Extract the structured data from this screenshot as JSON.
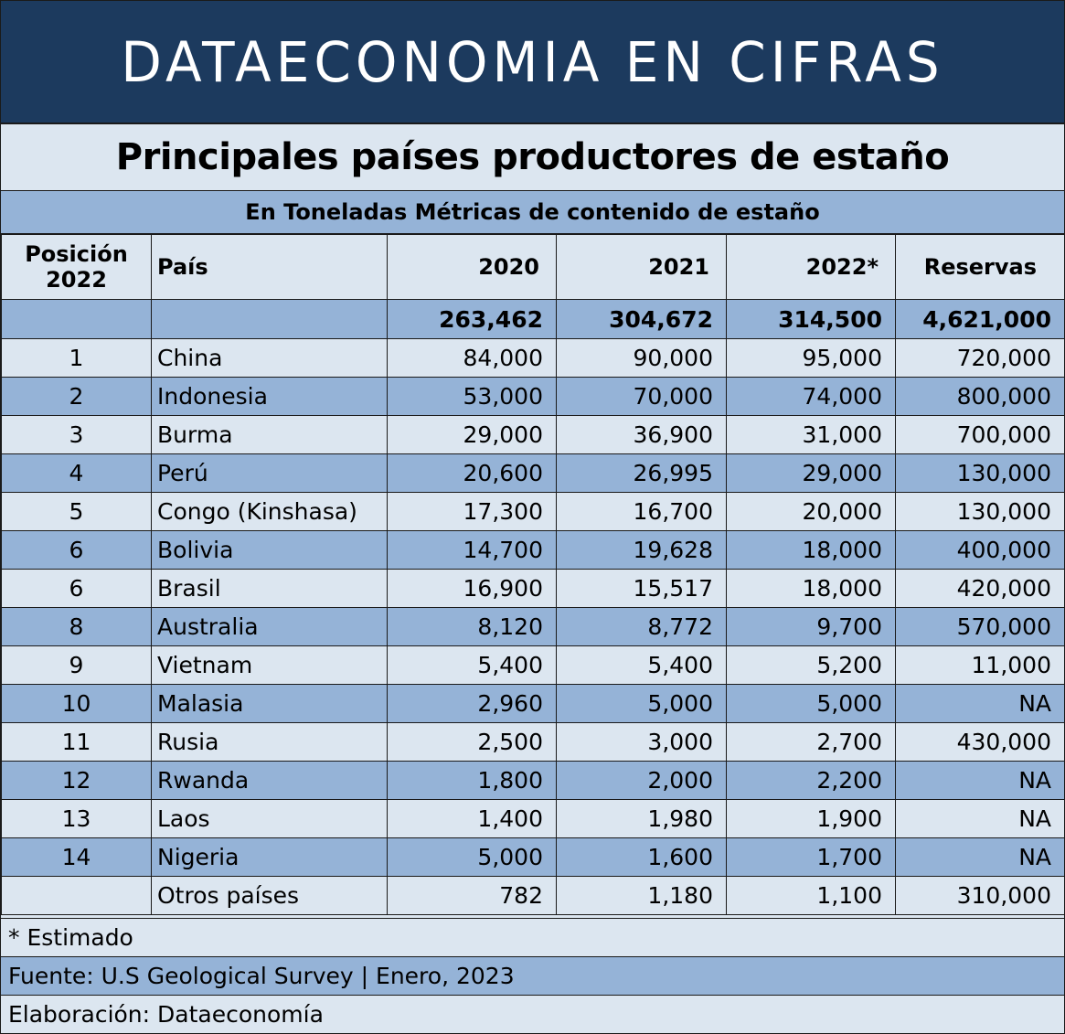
{
  "banner": "DATAECONOMIA EN CIFRAS",
  "title": "Principales países productores de estaño",
  "subtitle": "En Toneladas Métricas de contenido de estaño",
  "colors": {
    "banner": "#1c3a5e",
    "light": "#dce6f0",
    "dark": "#95b3d7"
  },
  "headers": {
    "position_line1": "Posición",
    "position_line2": "2022",
    "country": "País",
    "y2020": "2020",
    "y2021": "2021",
    "y2022": "2022*",
    "reserves": "Reservas"
  },
  "totals": {
    "y2020": "263,462",
    "y2021": "304,672",
    "y2022": "314,500",
    "reserves": "4,621,000"
  },
  "chart_data": {
    "type": "table",
    "columns": [
      "Posición 2022",
      "País",
      "2020",
      "2021",
      "2022*",
      "Reservas"
    ],
    "rows": [
      [
        "1",
        "China",
        "84,000",
        "90,000",
        "95,000",
        "720,000"
      ],
      [
        "2",
        "Indonesia",
        "53,000",
        "70,000",
        "74,000",
        "800,000"
      ],
      [
        "3",
        "Burma",
        "29,000",
        "36,900",
        "31,000",
        "700,000"
      ],
      [
        "4",
        "Perú",
        "20,600",
        "26,995",
        "29,000",
        "130,000"
      ],
      [
        "5",
        "Congo (Kinshasa)",
        "17,300",
        "16,700",
        "20,000",
        "130,000"
      ],
      [
        "6",
        "Bolivia",
        "14,700",
        "19,628",
        "18,000",
        "400,000"
      ],
      [
        "6",
        "Brasil",
        "16,900",
        "15,517",
        "18,000",
        "420,000"
      ],
      [
        "8",
        "Australia",
        "8,120",
        "8,772",
        "9,700",
        "570,000"
      ],
      [
        "9",
        "Vietnam",
        "5,400",
        "5,400",
        "5,200",
        "11,000"
      ],
      [
        "10",
        "Malasia",
        "2,960",
        "5,000",
        "5,000",
        "NA"
      ],
      [
        "11",
        "Rusia",
        "2,500",
        "3,000",
        "2,700",
        "430,000"
      ],
      [
        "12",
        "Rwanda",
        "1,800",
        "2,000",
        "2,200",
        "NA"
      ],
      [
        "13",
        "Laos",
        "1,400",
        "1,980",
        "1,900",
        "NA"
      ],
      [
        "14",
        "Nigeria",
        "5,000",
        "1,600",
        "1,700",
        "NA"
      ],
      [
        "",
        "Otros países",
        "782",
        "1,180",
        "1,100",
        "310,000"
      ]
    ]
  },
  "footer": {
    "note": "* Estimado",
    "source": "Fuente: U.S Geological Survey | Enero, 2023",
    "credit": "Elaboración: Dataeconomía"
  }
}
